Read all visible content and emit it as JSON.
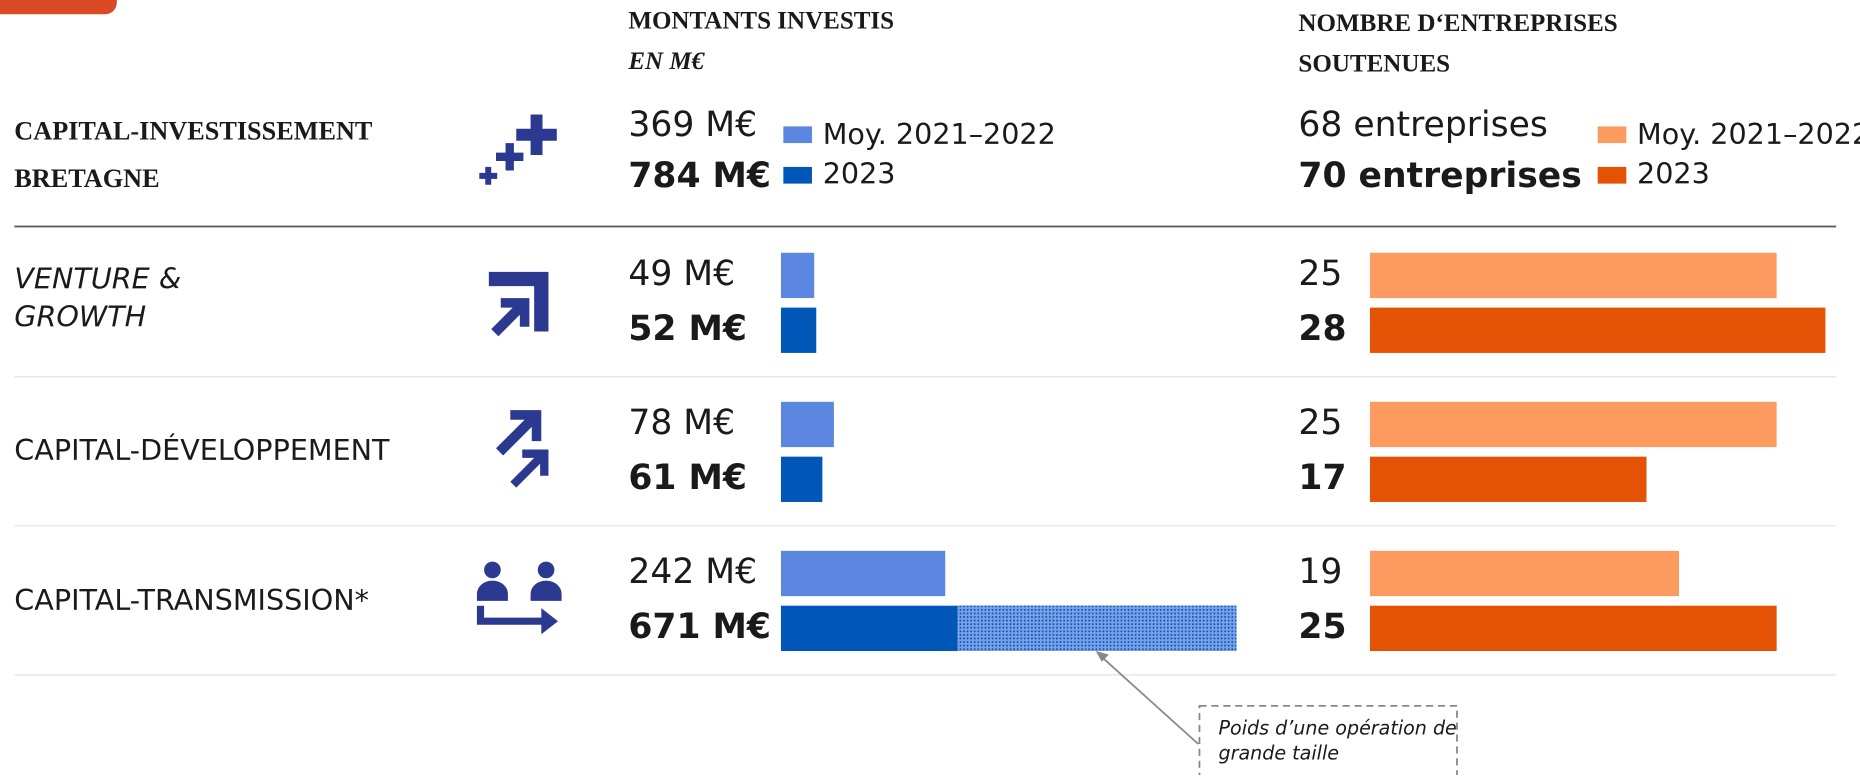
{
  "row_header": "CAPITAL-INVESTISSEMENT BRETAGNE",
  "categories": [
    "VENTURE & GROWTH",
    "CAPITAL-DÉVELOPPEMENT",
    "CAPITAL-TRANSMISSION*"
  ],
  "chart_data": [
    {
      "type": "bar",
      "orientation": "horizontal",
      "title": "MONTANTS INVESTIS",
      "subtitle": "EN M€",
      "xlim": [
        0,
        671
      ],
      "series": [
        {
          "name": "Moy. 2021–2022",
          "color": "#5b87e0",
          "total": 369,
          "total_label": "369 M€",
          "values": [
            49,
            78,
            242
          ],
          "value_labels": [
            "49 M€",
            "78 M€",
            "242 M€"
          ]
        },
        {
          "name": "2023",
          "color": "#0057b8",
          "total": 784,
          "total_label": "784 M€",
          "values": [
            52,
            61,
            671
          ],
          "value_labels": [
            "52 M€",
            "61 M€",
            "671 M€"
          ]
        }
      ],
      "annotation": {
        "text": "Poids d’une opération de grande taille",
        "value": 411
      }
    },
    {
      "type": "bar",
      "orientation": "horizontal",
      "title": "NOMBRE D‘ENTREPRISES SOUTENUES",
      "xlim": [
        0,
        28
      ],
      "series": [
        {
          "name": "Moy. 2021–2022",
          "color": "#fc9a5f",
          "total": 68,
          "total_label": "68 entreprises",
          "values": [
            25,
            25,
            19
          ]
        },
        {
          "name": "2023",
          "color": "#e35205",
          "total": 70,
          "total_label": "70 entreprises",
          "values": [
            28,
            17,
            25
          ]
        }
      ]
    }
  ]
}
